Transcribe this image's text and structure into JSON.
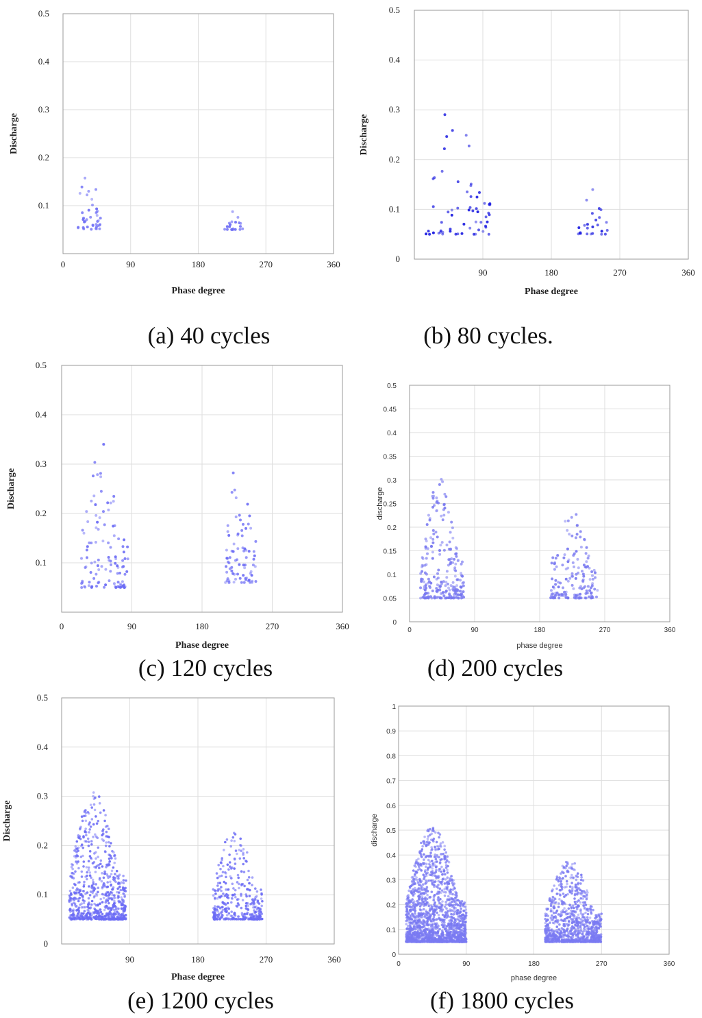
{
  "captions": [
    "(a) 40 cycles",
    "(b) 80 cycles.",
    "(c) 120 cycles",
    "(d) 200 cycles",
    "(e) 1200 cycles",
    "(f) 1800 cycles"
  ],
  "chart_data": [
    {
      "type": "scatter",
      "caption": "(a) 40 cycles",
      "xlabel": "Phase degree",
      "ylabel": "Discharge",
      "xlim": [
        0,
        360
      ],
      "ylim": [
        0,
        0.5
      ],
      "xticks": [
        0,
        90,
        180,
        270,
        360
      ],
      "xtick_labels": [
        "0",
        "90",
        "180",
        "270",
        "360"
      ],
      "yticks": [
        0.1,
        0.2,
        0.3,
        0.4,
        0.5
      ],
      "ytick_labels": [
        "0.1",
        "0.2",
        "0.3",
        "0.4",
        "0.5"
      ],
      "grid": true,
      "marker_color": "#6b6bf5",
      "clusters": [
        {
          "phase_range": [
            20,
            50
          ],
          "discharge_range": [
            0.05,
            0.21
          ],
          "approx_points": 40
        },
        {
          "phase_range": [
            215,
            245
          ],
          "discharge_range": [
            0.05,
            0.09
          ],
          "approx_points": 20
        }
      ]
    },
    {
      "type": "scatter",
      "caption": "(b) 80 cycles.",
      "xlabel": "Phase degree",
      "ylabel": "Discharge",
      "xlim": [
        0,
        360
      ],
      "ylim": [
        0,
        0.5
      ],
      "xticks": [
        90,
        180,
        270,
        360
      ],
      "xtick_labels": [
        "90",
        "180",
        "270",
        "360"
      ],
      "yticks": [
        0,
        0.1,
        0.2,
        0.3,
        0.4,
        0.5
      ],
      "ytick_labels": [
        "0",
        "0.1",
        "0.2",
        "0.3",
        "0.4",
        "0.5"
      ],
      "grid": true,
      "marker_color": "#1a1ae0",
      "clusters": [
        {
          "phase_range": [
            15,
            100
          ],
          "discharge_range": [
            0.05,
            0.34
          ],
          "approx_points": 60
        },
        {
          "phase_range": [
            215,
            255
          ],
          "discharge_range": [
            0.05,
            0.16
          ],
          "approx_points": 25
        }
      ]
    },
    {
      "type": "scatter",
      "caption": "(c) 120 cycles",
      "xlabel": "Phase degree",
      "ylabel": "Discharge",
      "xlim": [
        0,
        360
      ],
      "ylim": [
        0,
        0.5
      ],
      "xticks": [
        0,
        90,
        180,
        270,
        360
      ],
      "xtick_labels": [
        "0",
        "90",
        "180",
        "270",
        "360"
      ],
      "yticks": [
        0.1,
        0.2,
        0.3,
        0.4,
        0.5
      ],
      "ytick_labels": [
        "0.1",
        "0.2",
        "0.3",
        "0.4",
        "0.5"
      ],
      "grid": true,
      "marker_color": "#6b6bf5",
      "clusters": [
        {
          "phase_range": [
            25,
            85
          ],
          "discharge_range": [
            0.05,
            0.35
          ],
          "approx_points": 110
        },
        {
          "phase_range": [
            210,
            250
          ],
          "discharge_range": [
            0.06,
            0.32
          ],
          "approx_points": 80
        }
      ]
    },
    {
      "type": "scatter",
      "caption": "(d) 200 cycles",
      "xlabel": "phase degree",
      "ylabel": "discharge",
      "xlim": [
        0,
        360
      ],
      "ylim": [
        0,
        0.5
      ],
      "xticks": [
        0,
        90,
        180,
        270,
        360
      ],
      "xtick_labels": [
        "0",
        "90",
        "180",
        "270",
        "360"
      ],
      "yticks": [
        0,
        0.05,
        0.1,
        0.15,
        0.2,
        0.25,
        0.3,
        0.35,
        0.4,
        0.45,
        0.5
      ],
      "ytick_labels": [
        "0",
        "0.05",
        "0.1",
        "0.15",
        "0.2",
        "0.25",
        "0.3",
        "0.35",
        "0.4",
        "0.45",
        "0.5"
      ],
      "grid": true,
      "marker_color": "#7878f0",
      "clusters": [
        {
          "phase_range": [
            15,
            75
          ],
          "discharge_range": [
            0.05,
            0.31
          ],
          "approx_points": 240
        },
        {
          "phase_range": [
            195,
            260
          ],
          "discharge_range": [
            0.05,
            0.24
          ],
          "approx_points": 160
        }
      ]
    },
    {
      "type": "scatter",
      "caption": "(e) 1200 cycles",
      "xlabel": "Phase degree",
      "ylabel": "Discharge",
      "xlim": [
        0,
        360
      ],
      "ylim": [
        0,
        0.5
      ],
      "xticks": [
        90,
        180,
        270,
        360
      ],
      "xtick_labels": [
        "90",
        "180",
        "270",
        "360"
      ],
      "yticks": [
        0,
        0.1,
        0.2,
        0.3,
        0.4,
        0.5
      ],
      "ytick_labels": [
        "0",
        "0.1",
        "0.2",
        "0.3",
        "0.4",
        "0.5"
      ],
      "grid": true,
      "marker_color": "#6b6bf5",
      "clusters": [
        {
          "phase_range": [
            10,
            85
          ],
          "discharge_range": [
            0.05,
            0.31
          ],
          "approx_points": 700
        },
        {
          "phase_range": [
            200,
            265
          ],
          "discharge_range": [
            0.05,
            0.24
          ],
          "approx_points": 350
        }
      ]
    },
    {
      "type": "scatter",
      "caption": "(f) 1800 cycles",
      "xlabel": "phase degree",
      "ylabel": "discharge",
      "xlim": [
        0,
        360
      ],
      "ylim": [
        0,
        1
      ],
      "xticks": [
        0,
        90,
        180,
        270,
        360
      ],
      "xtick_labels": [
        "0",
        "90",
        "180",
        "270",
        "360"
      ],
      "yticks": [
        0,
        0.1,
        0.2,
        0.3,
        0.4,
        0.5,
        0.6,
        0.7,
        0.8,
        0.9,
        1
      ],
      "ytick_labels": [
        "0",
        "0.1",
        "0.2",
        "0.3",
        "0.4",
        "0.5",
        "0.6",
        "0.7",
        "0.8",
        "0.9",
        "1"
      ],
      "grid": true,
      "marker_color": "#7a7af2",
      "clusters": [
        {
          "phase_range": [
            10,
            90
          ],
          "discharge_range": [
            0.05,
            0.52
          ],
          "approx_points": 1600
        },
        {
          "phase_range": [
            195,
            270
          ],
          "discharge_range": [
            0.05,
            0.38
          ],
          "approx_points": 900
        }
      ]
    }
  ]
}
